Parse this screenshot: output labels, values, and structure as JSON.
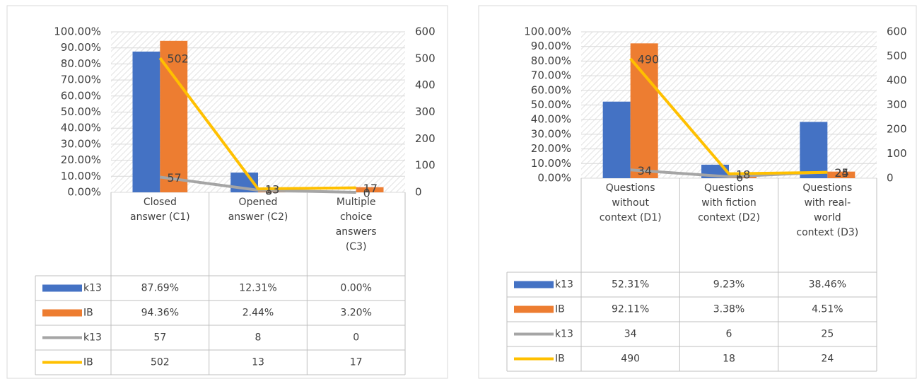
{
  "chart_data": [
    {
      "type": "bar",
      "categories": [
        "Closed answer (C1)",
        "Opened answer (C2)",
        "Multiple choice answers (C3)"
      ],
      "series": [
        {
          "name": "k13",
          "type": "bar",
          "color": "#4472c4",
          "values": [
            87.69,
            12.31,
            0
          ],
          "value_labels": [
            "87.69%",
            "12.31%",
            "0.00%"
          ]
        },
        {
          "name": "IB",
          "type": "bar",
          "color": "#ed7d31",
          "values": [
            94.36,
            2.44,
            3.2
          ],
          "value_labels": [
            "94.36%",
            "2.44%",
            "3.20%"
          ]
        },
        {
          "name": "k13",
          "type": "line",
          "axis": "y2",
          "color": "#a5a5a5",
          "values": [
            57,
            8,
            0
          ]
        },
        {
          "name": "IB",
          "type": "line",
          "axis": "y2",
          "color": "#ffc000",
          "values": [
            502,
            13,
            17
          ]
        }
      ],
      "ylim": [
        0,
        100
      ],
      "yticks": [
        {
          "value": 0,
          "label": "0.00%"
        },
        {
          "value": 10,
          "label": "10.00%"
        },
        {
          "value": 20,
          "label": "20.00%"
        },
        {
          "value": 30,
          "label": "30.00%"
        },
        {
          "value": 40,
          "label": "40.00%"
        },
        {
          "value": 50,
          "label": "50.00%"
        },
        {
          "value": 60,
          "label": "60.00%"
        },
        {
          "value": 70,
          "label": "70.00%"
        },
        {
          "value": 80,
          "label": "80.00%"
        },
        {
          "value": 90,
          "label": "90.00%"
        },
        {
          "value": 100,
          "label": "100.00%"
        }
      ],
      "y2lim": [
        0,
        600
      ],
      "y2ticks": [
        0,
        100,
        200,
        300,
        400,
        500,
        600
      ],
      "grid": true
    },
    {
      "type": "bar",
      "categories": [
        "Questions without context (D1)",
        "Questions with fiction context (D2)",
        "Questions with real-world context (D3)"
      ],
      "series": [
        {
          "name": "k13",
          "type": "bar",
          "color": "#4472c4",
          "values": [
            52.31,
            9.23,
            38.46
          ],
          "value_labels": [
            "52.31%",
            "9.23%",
            "38.46%"
          ]
        },
        {
          "name": "IB",
          "type": "bar",
          "color": "#ed7d31",
          "values": [
            92.11,
            3.38,
            4.51
          ],
          "value_labels": [
            "92.11%",
            "3.38%",
            "4.51%"
          ]
        },
        {
          "name": "k13",
          "type": "line",
          "axis": "y2",
          "color": "#a5a5a5",
          "values": [
            34,
            6,
            25
          ]
        },
        {
          "name": "IB",
          "type": "line",
          "axis": "y2",
          "color": "#ffc000",
          "values": [
            490,
            18,
            24
          ]
        }
      ],
      "ylim": [
        0,
        100
      ],
      "yticks": [
        {
          "value": 0,
          "label": "0.00%"
        },
        {
          "value": 10,
          "label": "10.00%"
        },
        {
          "value": 20,
          "label": "20.00%"
        },
        {
          "value": 30,
          "label": "30.00%"
        },
        {
          "value": 40,
          "label": "40.00%"
        },
        {
          "value": 50,
          "label": "50.00%"
        },
        {
          "value": 60,
          "label": "60.00%"
        },
        {
          "value": 70,
          "label": "70.00%"
        },
        {
          "value": 80,
          "label": "80.00%"
        },
        {
          "value": 90,
          "label": "90.00%"
        },
        {
          "value": 100,
          "label": "100.00%"
        }
      ],
      "y2lim": [
        0,
        600
      ],
      "y2ticks": [
        0,
        100,
        200,
        300,
        400,
        500,
        600
      ],
      "grid": true
    }
  ]
}
